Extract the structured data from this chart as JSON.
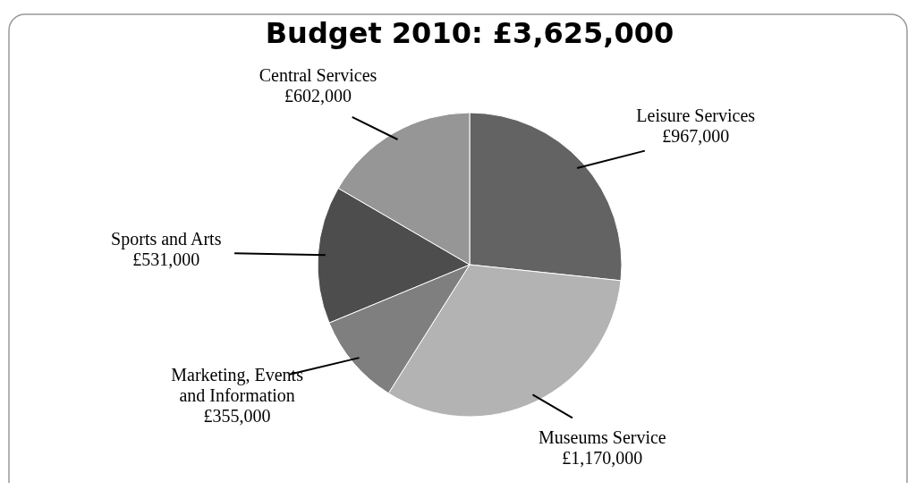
{
  "chart_data": {
    "type": "pie",
    "title": "Budget 2010: £3,625,000",
    "categories": [
      "Leisure Services",
      "Museums Service",
      "Marketing, Events and Information",
      "Sports and Arts",
      "Central Services"
    ],
    "values": [
      967000,
      1170000,
      355000,
      531000,
      602000
    ],
    "value_labels": [
      "£967,000",
      "£1,170,000",
      "£355,000",
      "£531,000",
      "£602,000"
    ],
    "colors": [
      "#636363",
      "#b3b3b3",
      "#7f7f7f",
      "#4d4d4d",
      "#969696"
    ]
  }
}
